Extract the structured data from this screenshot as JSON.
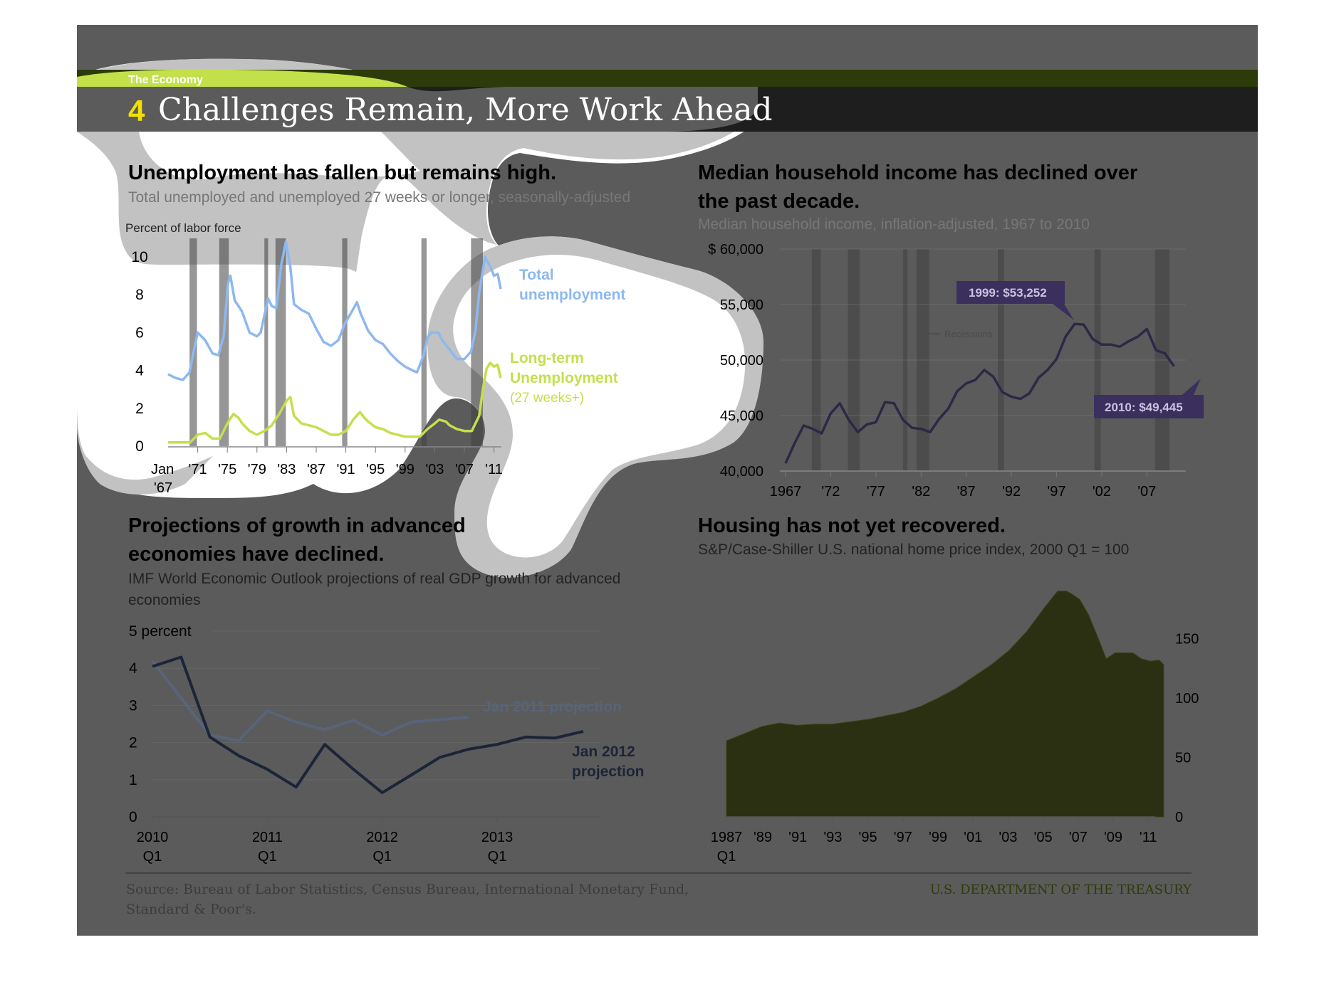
{
  "header": {
    "section_label": "The Economy",
    "number": "4",
    "title": "Challenges Remain, More Work Ahead"
  },
  "colors": {
    "accent_green": "#c3e04b",
    "dark_green_band": "#2d3b0a",
    "title_bar": "#1e1e1e",
    "overlay_gray": "#5b5b5b",
    "light_halo": "#c2c2c2",
    "total_unemployment_line": "#8db8f0",
    "long_term_line": "#c3e04b",
    "income_line": "#2e2746",
    "label_box": "#3b2f5e",
    "housing_fill": "#2c3012",
    "gdp_2011_line": "#58647a",
    "gdp_2012_line": "#1c2438"
  },
  "panels": {
    "unemployment": {
      "title": "Unemployment has fallen but remains high.",
      "subtitle": "Total unemployed and unemployed 27 weeks or longer, seasonally-adjusted",
      "ylabel": "Percent of labor force",
      "label_total_1": "Total",
      "label_total_2": "unemployment",
      "label_lt_1": "Long-term",
      "label_lt_2": "Unemployment",
      "label_lt_3": "(27 weeks+)",
      "x_first_line1": "Jan",
      "x_first_line2": "'67"
    },
    "income": {
      "title_line1": "Median household income has declined over",
      "title_line2": "the past decade.",
      "subtitle": "Median household income, inflation-adjusted, 1967 to 2010",
      "label_1999": "1999: $53,252",
      "label_2010": "2010: $49,445",
      "recessions_label": "Recessions"
    },
    "gdp": {
      "title_line1": "Projections of growth in advanced",
      "title_line2": "economies have declined.",
      "subtitle_line1": "IMF World Economic Outlook  projections of real GDP growth for advanced",
      "subtitle_line2": "economies",
      "label_2011": "Jan 2011 projection",
      "label_2012_1": "Jan 2012",
      "label_2012_2": "projection"
    },
    "housing": {
      "title": "Housing has not yet recovered.",
      "subtitle": "S&P/Case-Shiller U.S. national home price index, 2000 Q1 = 100",
      "x_first_line2": "Q1"
    }
  },
  "footer": {
    "source_line1": "Source: Bureau of Labor Statistics, Census Bureau, International Monetary Fund,",
    "source_line2": "Standard & Poor's.",
    "agency": "U.S. DEPARTMENT OF THE TREASURY"
  },
  "chart_data": [
    {
      "id": "unemployment",
      "type": "line",
      "title": "Unemployment has fallen but remains high.",
      "ylabel": "Percent of labor force",
      "ylim": [
        0,
        10
      ],
      "yticks": [
        "0",
        "2",
        "4",
        "6",
        "8",
        "10"
      ],
      "xlim": [
        1967,
        2012
      ],
      "xticks": [
        {
          "x": 1967,
          "label": "Jan"
        },
        {
          "x": 1971,
          "label": "'71"
        },
        {
          "x": 1975,
          "label": "'75"
        },
        {
          "x": 1979,
          "label": "'79"
        },
        {
          "x": 1983,
          "label": "'83"
        },
        {
          "x": 1987,
          "label": "'87"
        },
        {
          "x": 1991,
          "label": "'91"
        },
        {
          "x": 1995,
          "label": "'95"
        },
        {
          "x": 1999,
          "label": "'99"
        },
        {
          "x": 2003,
          "label": "'03"
        },
        {
          "x": 2007,
          "label": "'07"
        },
        {
          "x": 2011,
          "label": "'11"
        }
      ],
      "recessions": [
        [
          1969.9,
          1970.9
        ],
        [
          1973.9,
          1975.2
        ],
        [
          1980.0,
          1980.5
        ],
        [
          1981.5,
          1982.9
        ],
        [
          1990.5,
          1991.2
        ],
        [
          2001.2,
          2001.9
        ],
        [
          2007.9,
          2009.5
        ]
      ],
      "series": [
        {
          "name": "Total unemployment",
          "x": [
            1967,
            1968,
            1969,
            1969.9,
            1970.5,
            1971,
            1972,
            1973,
            1973.8,
            1974.5,
            1975.1,
            1975.4,
            1976,
            1977,
            1978,
            1979,
            1979.5,
            1980.5,
            1981,
            1981.6,
            1982.3,
            1982.9,
            1983.5,
            1984,
            1985,
            1986,
            1987,
            1988,
            1989,
            1990,
            1990.9,
            1991.5,
            1992.5,
            1993,
            1994,
            1995,
            1996,
            1997,
            1998,
            1999,
            2000,
            2000.6,
            2001.5,
            2002,
            2002.5,
            2003.5,
            2004,
            2005,
            2006,
            2007,
            2007.9,
            2008.5,
            2009,
            2009.8,
            2010,
            2010.5,
            2011,
            2011.5,
            2011.9
          ],
          "values": [
            3.8,
            3.6,
            3.5,
            3.9,
            5.1,
            6.0,
            5.6,
            4.9,
            4.8,
            5.8,
            8.6,
            9.0,
            7.7,
            7.1,
            6.0,
            5.8,
            6.0,
            7.8,
            7.4,
            7.3,
            9.6,
            10.8,
            9.5,
            7.5,
            7.2,
            7.0,
            6.2,
            5.5,
            5.3,
            5.6,
            6.5,
            6.9,
            7.6,
            7.0,
            6.1,
            5.6,
            5.4,
            4.9,
            4.5,
            4.2,
            4.0,
            3.9,
            4.8,
            5.7,
            6.0,
            6.0,
            5.6,
            5.1,
            4.6,
            4.6,
            5.0,
            6.1,
            8.1,
            10.0,
            9.8,
            9.5,
            9.0,
            9.1,
            8.3
          ]
        },
        {
          "name": "Long-term Unemployment (27 weeks+)",
          "x": [
            1967,
            1969,
            1970,
            1971,
            1972,
            1973,
            1974,
            1975,
            1975.8,
            1976.5,
            1977,
            1978,
            1979,
            1980,
            1981,
            1982,
            1983,
            1983.5,
            1984,
            1985,
            1986,
            1987,
            1988,
            1989,
            1990,
            1991,
            1992,
            1992.9,
            1993.5,
            1994,
            1995,
            1996,
            1997,
            1998,
            1999,
            2000,
            2001,
            2002,
            2003,
            2003.6,
            2004.5,
            2005,
            2006,
            2007,
            2008,
            2009,
            2009.5,
            2010,
            2010.5,
            2011,
            2011.5,
            2011.9
          ],
          "values": [
            0.2,
            0.2,
            0.2,
            0.6,
            0.7,
            0.4,
            0.4,
            1.2,
            1.7,
            1.5,
            1.2,
            0.8,
            0.6,
            0.8,
            1.1,
            1.7,
            2.4,
            2.6,
            1.6,
            1.2,
            1.1,
            1.0,
            0.8,
            0.6,
            0.6,
            0.8,
            1.4,
            1.8,
            1.5,
            1.3,
            1.0,
            0.9,
            0.7,
            0.6,
            0.5,
            0.5,
            0.5,
            0.9,
            1.2,
            1.4,
            1.3,
            1.1,
            0.9,
            0.8,
            0.8,
            1.6,
            3.0,
            4.1,
            4.4,
            4.2,
            4.3,
            3.6
          ]
        }
      ]
    },
    {
      "id": "income",
      "type": "line",
      "title": "Median household income has declined over the past decade.",
      "ylim": [
        40000,
        60000
      ],
      "yticks": [
        "40,000",
        "45,000",
        "50,000",
        "55,000",
        "$ 60,000"
      ],
      "xlim": [
        1967,
        2011
      ],
      "xticks": [
        "1967",
        "'72",
        "'77",
        "'82",
        "'87",
        "'92",
        "'97",
        "'02",
        "'07"
      ],
      "recessions": [
        [
          1969.9,
          1970.9
        ],
        [
          1973.9,
          1975.2
        ],
        [
          1980.0,
          1980.5
        ],
        [
          1981.5,
          1982.9
        ],
        [
          1990.5,
          1991.2
        ],
        [
          2001.2,
          2001.9
        ],
        [
          2007.9,
          2009.5
        ]
      ],
      "series": [
        {
          "name": "Median household income",
          "x": [
            1967,
            1968,
            1969,
            1970,
            1971,
            1972,
            1973,
            1974,
            1975,
            1976,
            1977,
            1978,
            1979,
            1980,
            1981,
            1982,
            1983,
            1984,
            1985,
            1986,
            1987,
            1988,
            1989,
            1990,
            1991,
            1992,
            1993,
            1994,
            1995,
            1996,
            1997,
            1998,
            1999,
            2000,
            2001,
            2002,
            2003,
            2004,
            2005,
            2006,
            2007,
            2008,
            2009,
            2010
          ],
          "values": [
            40700,
            42500,
            44100,
            43800,
            43400,
            45200,
            46100,
            44600,
            43500,
            44200,
            44400,
            46200,
            46100,
            44600,
            43900,
            43800,
            43500,
            44700,
            45600,
            47200,
            47900,
            48200,
            49100,
            48500,
            47100,
            46700,
            46500,
            47000,
            48400,
            49100,
            50100,
            52100,
            53252,
            53200,
            51900,
            51400,
            51400,
            51200,
            51700,
            52100,
            52800,
            50900,
            50600,
            49445
          ]
        }
      ]
    },
    {
      "id": "gdp",
      "type": "line",
      "title": "Projections of growth in advanced economies have declined.",
      "ylim": [
        0,
        5
      ],
      "yticks": [
        "0",
        "1",
        "2",
        "3",
        "4",
        "5 percent"
      ],
      "xlim": [
        2010.0,
        2013.75
      ],
      "xticks": [
        {
          "x": 2010.0,
          "label": "2010",
          "label2": "Q1"
        },
        {
          "x": 2011.0,
          "label": "2011",
          "label2": "Q1"
        },
        {
          "x": 2012.0,
          "label": "2012",
          "label2": "Q1"
        },
        {
          "x": 2013.0,
          "label": "2013",
          "label2": "Q1"
        }
      ],
      "series": [
        {
          "name": "Jan 2011 projection",
          "x": [
            2010.0,
            2010.25,
            2010.5,
            2010.75,
            2011.0,
            2011.25,
            2011.5,
            2011.75,
            2012.0,
            2012.25,
            2012.5,
            2012.75
          ],
          "values": [
            4.2,
            3.2,
            2.2,
            2.05,
            2.85,
            2.55,
            2.35,
            2.6,
            2.2,
            2.55,
            2.62,
            2.68
          ]
        },
        {
          "name": "Jan 2012 projection",
          "x": [
            2010.0,
            2010.25,
            2010.5,
            2010.75,
            2011.0,
            2011.25,
            2011.5,
            2011.75,
            2012.0,
            2012.25,
            2012.5,
            2012.75,
            2013.0,
            2013.25,
            2013.5,
            2013.75
          ],
          "values": [
            4.05,
            4.3,
            2.15,
            1.65,
            1.28,
            0.8,
            1.95,
            1.28,
            0.65,
            1.12,
            1.6,
            1.82,
            1.95,
            2.15,
            2.12,
            2.3
          ]
        }
      ]
    },
    {
      "id": "housing",
      "type": "area",
      "title": "Housing has not yet recovered.",
      "ylim": [
        0,
        200
      ],
      "yticks": [
        "0",
        "50",
        "100",
        "150"
      ],
      "xlim": [
        1987.0,
        2012.0
      ],
      "xticks": [
        "1987",
        "'89",
        "'91",
        "'93",
        "'95",
        "'97",
        "'99",
        "'01",
        "'03",
        "'05",
        "'07",
        "'09",
        "'11"
      ],
      "series": [
        {
          "name": "S&P/Case-Shiller U.S. national home price index",
          "x": [
            1987.0,
            1988.0,
            1989.0,
            1990.0,
            1991.0,
            1992.0,
            1993.0,
            1994.0,
            1995.0,
            1996.0,
            1997.0,
            1998.0,
            1999.0,
            2000.0,
            2001.0,
            2002.0,
            2003.0,
            2004.0,
            2005.0,
            2005.75,
            2006.25,
            2006.5,
            2007.0,
            2007.5,
            2008.0,
            2008.5,
            2009.0,
            2009.5,
            2010.0,
            2010.5,
            2011.0,
            2011.5,
            2011.75
          ],
          "values": [
            64,
            70,
            76,
            79,
            77,
            78,
            78,
            80,
            82,
            85,
            88,
            93,
            100,
            108,
            118,
            128,
            140,
            156,
            176,
            190,
            190,
            188,
            183,
            170,
            152,
            133,
            138,
            138,
            138,
            133,
            131,
            132,
            128
          ]
        }
      ]
    }
  ]
}
